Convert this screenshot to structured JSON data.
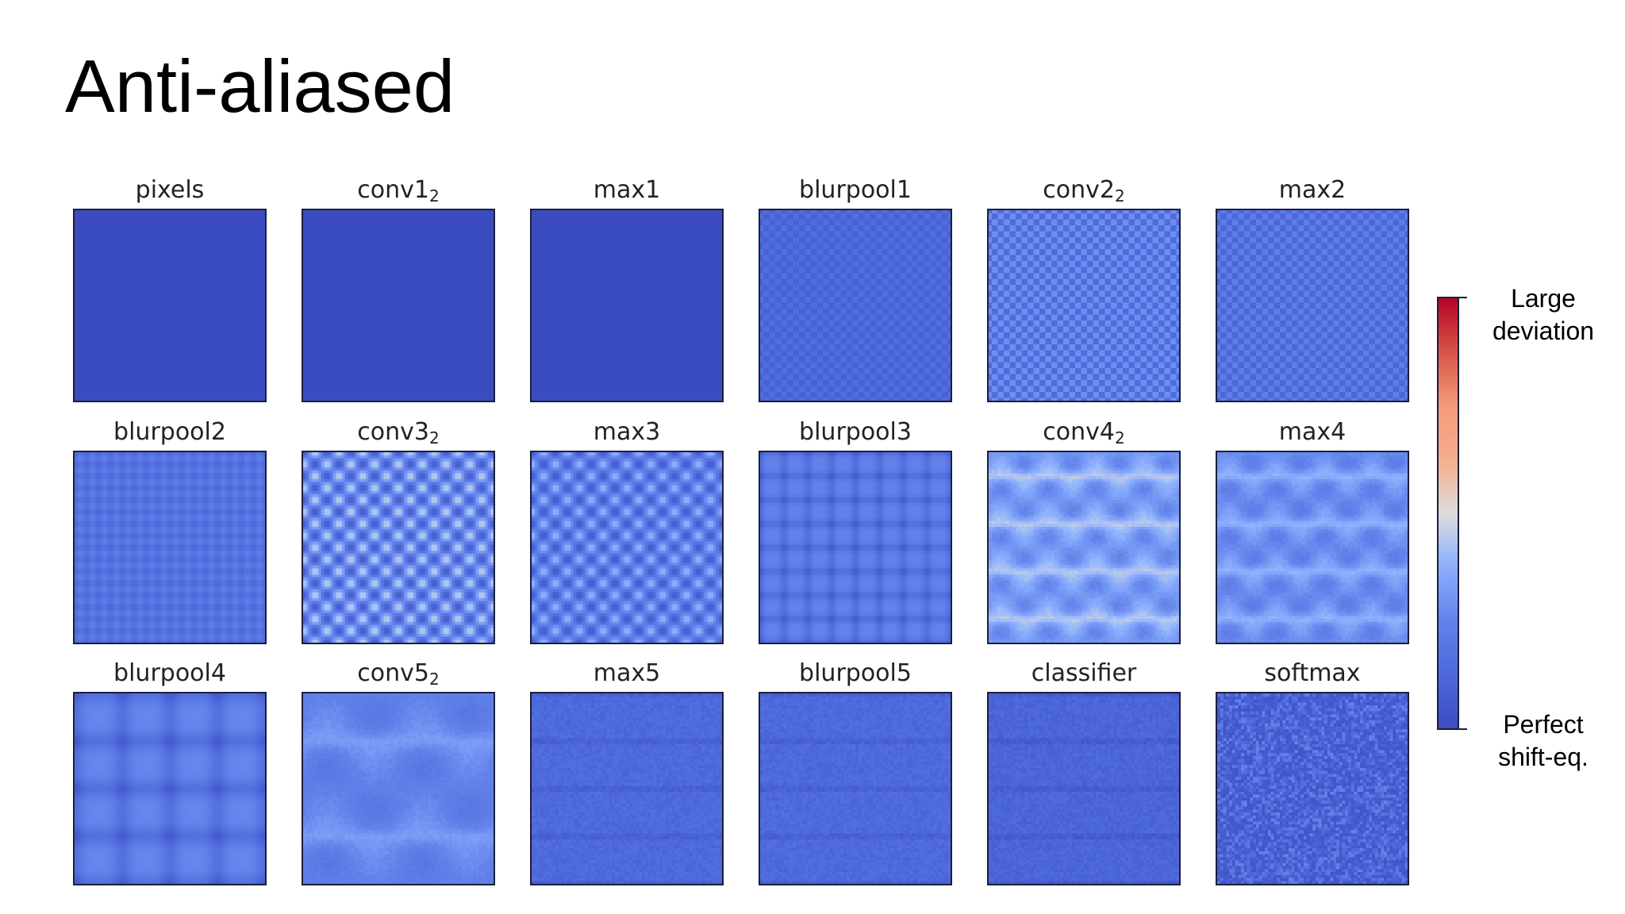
{
  "slide": {
    "title": "Anti-aliased"
  },
  "colormap": {
    "name": "coolwarm",
    "low_color": "#3b4cc0",
    "high_color": "#b40426"
  },
  "panels": [
    {
      "label": "pixels",
      "sub": "",
      "pattern": "flat",
      "period": 0,
      "strength": 0.0
    },
    {
      "label": "conv1",
      "sub": "2",
      "pattern": "flat",
      "period": 0,
      "strength": 0.0
    },
    {
      "label": "max1",
      "sub": "",
      "pattern": "flat",
      "period": 0,
      "strength": 0.0
    },
    {
      "label": "blurpool1",
      "sub": "",
      "pattern": "checker",
      "period": 4,
      "strength": 0.12
    },
    {
      "label": "conv2",
      "sub": "2",
      "pattern": "checker",
      "period": 4,
      "strength": 0.3
    },
    {
      "label": "max2",
      "sub": "",
      "pattern": "checker",
      "period": 4,
      "strength": 0.22
    },
    {
      "label": "blurpool2",
      "sub": "",
      "pattern": "grid",
      "period": 8,
      "strength": 0.14
    },
    {
      "label": "conv3",
      "sub": "2",
      "pattern": "checker",
      "period": 8,
      "strength": 0.4
    },
    {
      "label": "max3",
      "sub": "",
      "pattern": "checker",
      "period": 8,
      "strength": 0.33
    },
    {
      "label": "blurpool3",
      "sub": "",
      "pattern": "grid",
      "period": 16,
      "strength": 0.17
    },
    {
      "label": "conv4",
      "sub": "2",
      "pattern": "blobs",
      "period": 16,
      "strength": 0.46
    },
    {
      "label": "max4",
      "sub": "",
      "pattern": "blobs",
      "period": 16,
      "strength": 0.38
    },
    {
      "label": "blurpool4",
      "sub": "",
      "pattern": "grid",
      "period": 32,
      "strength": 0.18
    },
    {
      "label": "conv5",
      "sub": "2",
      "pattern": "blobs",
      "period": 32,
      "strength": 0.3
    },
    {
      "label": "max5",
      "sub": "",
      "pattern": "noise",
      "period": 32,
      "strength": 0.1
    },
    {
      "label": "blurpool5",
      "sub": "",
      "pattern": "noise",
      "period": 32,
      "strength": 0.1
    },
    {
      "label": "classifier",
      "sub": "",
      "pattern": "noise",
      "period": 32,
      "strength": 0.06
    },
    {
      "label": "softmax",
      "sub": "",
      "pattern": "speckle",
      "period": 0,
      "strength": 0.22
    }
  ],
  "colorbar": {
    "high_label": "Large\ndeviation",
    "low_label": "Perfect\nshift-eq."
  }
}
